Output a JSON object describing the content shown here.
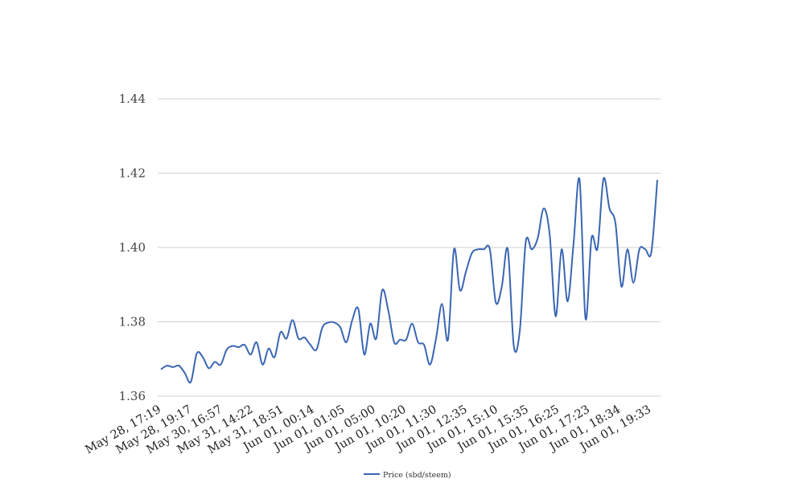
{
  "chart_data": {
    "type": "line",
    "title": "",
    "xlabel": "",
    "ylabel": "",
    "ylim": [
      1.36,
      1.44
    ],
    "yticks": [
      "1.36",
      "1.38",
      "1.40",
      "1.42",
      "1.44"
    ],
    "grid": true,
    "legend_position": "bottom-center",
    "color": "#3a66b3",
    "xtick_labels": [
      "May 28, 17:19",
      "May 28, 19:17",
      "May 30, 16:57",
      "May 31, 14:22",
      "May 31, 18:51",
      "Jun 01, 00:14",
      "Jun 01, 01:05",
      "Jun 01, 05:00",
      "Jun 01, 10:20",
      "Jun 01, 11:30",
      "Jun 01, 12:35",
      "Jun 01, 15:10",
      "Jun 01, 15:35",
      "Jun 01, 16:25",
      "Jun 01, 17:23",
      "Jun 01, 18:34",
      "Jun 01, 19:33"
    ],
    "series": [
      {
        "name": "Price (sbd/steem)",
        "values": [
          1.3672,
          1.3682,
          1.3678,
          1.3682,
          1.3662,
          1.3638,
          1.3715,
          1.3705,
          1.3675,
          1.3692,
          1.3685,
          1.3725,
          1.3735,
          1.3732,
          1.3738,
          1.3712,
          1.3745,
          1.3685,
          1.3728,
          1.3705,
          1.3772,
          1.3755,
          1.3805,
          1.3755,
          1.3758,
          1.3738,
          1.3725,
          1.3785,
          1.3798,
          1.3798,
          1.3785,
          1.3745,
          1.3805,
          1.3835,
          1.3712,
          1.3795,
          1.3755,
          1.3885,
          1.3832,
          1.3745,
          1.3752,
          1.3752,
          1.3795,
          1.3745,
          1.3738,
          1.3685,
          1.3755,
          1.3848,
          1.3752,
          1.3995,
          1.3885,
          1.3935,
          1.3985,
          1.3995,
          1.3995,
          1.3995,
          1.3852,
          1.3895,
          1.3995,
          1.3735,
          1.3775,
          1.4015,
          1.3995,
          1.4025,
          1.4105,
          1.4035,
          1.3815,
          1.3995,
          1.3855,
          1.4012,
          1.4182,
          1.3808,
          1.4025,
          1.3998,
          1.4185,
          1.4105,
          1.4065,
          1.3895,
          1.3995,
          1.3905,
          1.3995,
          1.3995,
          1.3988,
          1.4182
        ]
      }
    ]
  }
}
